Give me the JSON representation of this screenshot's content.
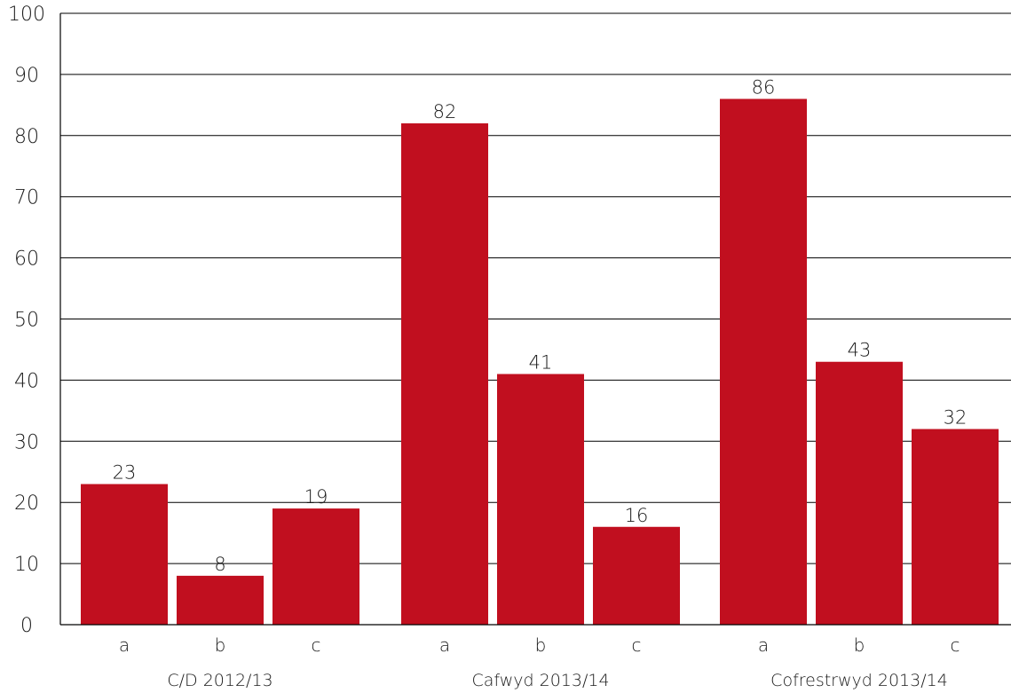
{
  "chart_data": {
    "type": "bar",
    "ylim": [
      0,
      100
    ],
    "yticks": [
      0,
      10,
      20,
      30,
      40,
      50,
      60,
      70,
      80,
      90,
      100
    ],
    "grid": true,
    "bar_color": "#c10f1f",
    "groups": [
      {
        "label": "C/D 2012/13",
        "categories": [
          "a",
          "b",
          "c"
        ],
        "values": [
          23,
          8,
          19
        ]
      },
      {
        "label": "Cafwyd 2013/14",
        "categories": [
          "a",
          "b",
          "c"
        ],
        "values": [
          82,
          41,
          16
        ]
      },
      {
        "label": "Cofrestrwyd 2013/14",
        "categories": [
          "a",
          "b",
          "c"
        ],
        "values": [
          86,
          43,
          32
        ]
      }
    ]
  }
}
